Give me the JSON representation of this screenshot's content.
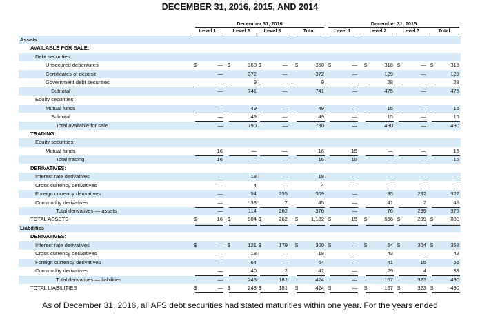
{
  "title": "DECEMBER 31, 2016, 2015, AND 2014",
  "groups": [
    "December 31, 2016",
    "December 31, 2015"
  ],
  "columns": [
    "Level 1",
    "Level 2",
    "Level 3",
    "Total",
    "Level 1",
    "Level 2",
    "Level 3",
    "Total"
  ],
  "rows": [
    {
      "label": "Assets",
      "indent": 0,
      "bold": true,
      "cells": [
        "",
        "",
        "",
        "",
        "",
        "",
        "",
        ""
      ],
      "dollars": false
    },
    {
      "label": "AVAILABLE FOR SALE:",
      "indent": 1,
      "bold": true,
      "cells": [
        "",
        "",
        "",
        "",
        "",
        "",
        "",
        ""
      ],
      "dollars": false
    },
    {
      "label": "Debt securities:",
      "indent": 2,
      "bold": false,
      "cells": [
        "",
        "",
        "",
        "",
        "",
        "",
        "",
        ""
      ],
      "dollars": false
    },
    {
      "label": "Unsecured debentures",
      "indent": 3,
      "bold": false,
      "cells": [
        "—",
        "360",
        "—",
        "360",
        "—",
        "318",
        "—",
        "318"
      ],
      "dollars": true
    },
    {
      "label": "Certificates of deposit",
      "indent": 3,
      "bold": false,
      "cells": [
        "—",
        "372",
        "—",
        "372",
        "—",
        "129",
        "—",
        "129"
      ],
      "dollars": false
    },
    {
      "label": "Government debt securities",
      "indent": 3,
      "bold": false,
      "cells": [
        "—",
        "9",
        "—",
        "9",
        "—",
        "28",
        "—",
        "28"
      ],
      "dollars": false
    },
    {
      "label": "Subtotal",
      "indent": 4,
      "bold": false,
      "cells": [
        "—",
        "741",
        "—",
        "741",
        "—",
        "475",
        "—",
        "475"
      ],
      "dollars": false
    },
    {
      "label": "Equity securities:",
      "indent": 2,
      "bold": false,
      "cells": [
        "",
        "",
        "",
        "",
        "",
        "",
        "",
        ""
      ],
      "dollars": false
    },
    {
      "label": "Mutual funds",
      "indent": 3,
      "bold": false,
      "cells": [
        "—",
        "49",
        "—",
        "49",
        "—",
        "15",
        "—",
        "15"
      ],
      "dollars": false
    },
    {
      "label": "Subtotal",
      "indent": 4,
      "bold": false,
      "cells": [
        "—",
        "49",
        "—",
        "49",
        "—",
        "15",
        "—",
        "15"
      ],
      "dollars": false
    },
    {
      "label": "Total available for sale",
      "indent": 5,
      "bold": false,
      "cells": [
        "—",
        "790",
        "—",
        "790",
        "—",
        "490",
        "—",
        "490"
      ],
      "dollars": false
    },
    {
      "label": "TRADING:",
      "indent": 1,
      "bold": true,
      "cells": [
        "",
        "",
        "",
        "",
        "",
        "",
        "",
        ""
      ],
      "dollars": false
    },
    {
      "label": "Equity securities:",
      "indent": 2,
      "bold": false,
      "cells": [
        "",
        "",
        "",
        "",
        "",
        "",
        "",
        ""
      ],
      "dollars": false
    },
    {
      "label": "Mutual funds",
      "indent": 3,
      "bold": false,
      "cells": [
        "16",
        "—",
        "—",
        "16",
        "15",
        "—",
        "—",
        "15"
      ],
      "dollars": false
    },
    {
      "label": "Total trading",
      "indent": 5,
      "bold": false,
      "cells": [
        "16",
        "—",
        "—",
        "16",
        "15",
        "—",
        "—",
        "15"
      ],
      "dollars": false
    },
    {
      "label": "DERIVATIVES:",
      "indent": 1,
      "bold": true,
      "cells": [
        "",
        "",
        "",
        "",
        "",
        "",
        "",
        ""
      ],
      "dollars": false
    },
    {
      "label": "Interest rate derivatives",
      "indent": 2,
      "bold": false,
      "cells": [
        "—",
        "18",
        "—",
        "18",
        "—",
        "—",
        "—",
        "—"
      ],
      "dollars": false
    },
    {
      "label": "Cross currency derivatives",
      "indent": 2,
      "bold": false,
      "cells": [
        "—",
        "4",
        "—",
        "4",
        "—",
        "—",
        "—",
        "—"
      ],
      "dollars": false
    },
    {
      "label": "Foreign currency derivatives",
      "indent": 2,
      "bold": false,
      "cells": [
        "—",
        "54",
        "255",
        "309",
        "—",
        "35",
        "292",
        "327"
      ],
      "dollars": false
    },
    {
      "label": "Commodity derivatives",
      "indent": 2,
      "bold": false,
      "cells": [
        "—",
        "38",
        "7",
        "45",
        "—",
        "41",
        "7",
        "48"
      ],
      "dollars": false
    },
    {
      "label": "Total derivatives — assets",
      "indent": 5,
      "bold": false,
      "cells": [
        "—",
        "114",
        "262",
        "376",
        "—",
        "76",
        "299",
        "375"
      ],
      "dollars": false
    },
    {
      "label": "TOTAL ASSETS",
      "indent": 1,
      "bold": false,
      "cells": [
        "16",
        "904",
        "262",
        "1,182",
        "15",
        "566",
        "299",
        "880"
      ],
      "dollars": true
    },
    {
      "label": "Liabilities",
      "indent": 0,
      "bold": true,
      "cells": [
        "",
        "",
        "",
        "",
        "",
        "",
        "",
        ""
      ],
      "dollars": false
    },
    {
      "label": "DERIVATIVES:",
      "indent": 1,
      "bold": true,
      "cells": [
        "",
        "",
        "",
        "",
        "",
        "",
        "",
        ""
      ],
      "dollars": false
    },
    {
      "label": "Interest rate derivatives",
      "indent": 2,
      "bold": false,
      "cells": [
        "—",
        "121",
        "179",
        "300",
        "—",
        "54",
        "304",
        "358"
      ],
      "dollars": true
    },
    {
      "label": "Cross currency derivatives",
      "indent": 2,
      "bold": false,
      "cells": [
        "—",
        "18",
        "—",
        "18",
        "—",
        "43",
        "—",
        "43"
      ],
      "dollars": false
    },
    {
      "label": "Foreign currency derivatives",
      "indent": 2,
      "bold": false,
      "cells": [
        "—",
        "64",
        "—",
        "64",
        "—",
        "41",
        "15",
        "56"
      ],
      "dollars": false
    },
    {
      "label": "Commodity derivatives",
      "indent": 2,
      "bold": false,
      "cells": [
        "—",
        "40",
        "2",
        "42",
        "—",
        "29",
        "4",
        "33"
      ],
      "dollars": false
    },
    {
      "label": "Total derivatives — liabilities",
      "indent": 5,
      "bold": false,
      "cells": [
        "—",
        "243",
        "181",
        "424",
        "—",
        "167",
        "323",
        "490"
      ],
      "dollars": false
    },
    {
      "label": "TOTAL LIABILITIES",
      "indent": 1,
      "bold": false,
      "cells": [
        "—",
        "243",
        "181",
        "424",
        "—",
        "167",
        "323",
        "490"
      ],
      "dollars": true
    }
  ],
  "dollar_sign": "$",
  "footer": "As of December 31, 2016, all AFS debt securities had stated maturities within one year. For the years ended",
  "colors": {
    "band": "#d7ecf8",
    "white": "#ffffff",
    "text": "#111111"
  }
}
